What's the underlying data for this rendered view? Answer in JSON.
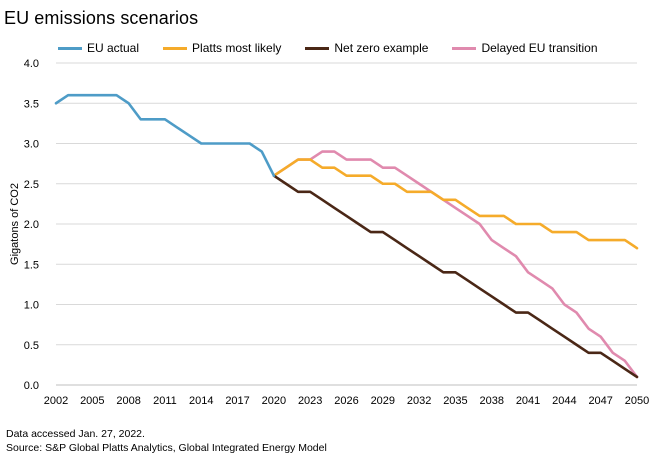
{
  "title": "EU emissions scenarios",
  "notes": {
    "accessed": "Data accessed Jan. 27, 2022.",
    "source": "Source: S&P Global Platts Analytics, Global Integrated Energy Model"
  },
  "chart_data": {
    "type": "line",
    "title": "EU emissions scenarios",
    "xlabel": "",
    "ylabel": "Gigatons of CO2",
    "xlim": [
      2002,
      2050
    ],
    "ylim": [
      0,
      4.0
    ],
    "x_ticks": [
      2002,
      2005,
      2008,
      2011,
      2014,
      2017,
      2020,
      2023,
      2026,
      2029,
      2032,
      2035,
      2038,
      2041,
      2044,
      2047,
      2050
    ],
    "y_ticks": [
      "0.0",
      "0.5",
      "1.0",
      "1.5",
      "2.0",
      "2.5",
      "3.0",
      "3.5",
      "4.0"
    ],
    "grid": "horizontal",
    "legend_position": "top",
    "series": [
      {
        "name": "EU actual",
        "color": "#4e9cc7",
        "x": [
          2002,
          2003,
          2004,
          2005,
          2006,
          2007,
          2008,
          2009,
          2010,
          2011,
          2012,
          2013,
          2014,
          2015,
          2016,
          2017,
          2018,
          2019,
          2020
        ],
        "y": [
          3.5,
          3.6,
          3.6,
          3.6,
          3.6,
          3.6,
          3.5,
          3.3,
          3.3,
          3.3,
          3.2,
          3.1,
          3.0,
          3.0,
          3.0,
          3.0,
          3.0,
          2.9,
          2.6
        ]
      },
      {
        "name": "Platts most likely",
        "color": "#f5ab2a",
        "x": [
          2020,
          2021,
          2022,
          2023,
          2024,
          2025,
          2026,
          2027,
          2028,
          2029,
          2030,
          2031,
          2032,
          2033,
          2034,
          2035,
          2036,
          2037,
          2038,
          2039,
          2040,
          2041,
          2042,
          2043,
          2044,
          2045,
          2046,
          2047,
          2048,
          2049,
          2050
        ],
        "y": [
          2.6,
          2.7,
          2.8,
          2.8,
          2.7,
          2.7,
          2.6,
          2.6,
          2.6,
          2.5,
          2.5,
          2.4,
          2.4,
          2.4,
          2.3,
          2.3,
          2.2,
          2.1,
          2.1,
          2.1,
          2.0,
          2.0,
          2.0,
          1.9,
          1.9,
          1.9,
          1.8,
          1.8,
          1.8,
          1.8,
          1.7
        ]
      },
      {
        "name": "Net zero example",
        "color": "#4a2716",
        "x": [
          2020,
          2021,
          2022,
          2023,
          2024,
          2025,
          2026,
          2027,
          2028,
          2029,
          2030,
          2031,
          2032,
          2033,
          2034,
          2035,
          2036,
          2037,
          2038,
          2039,
          2040,
          2041,
          2042,
          2043,
          2044,
          2045,
          2046,
          2047,
          2048,
          2049,
          2050
        ],
        "y": [
          2.6,
          2.5,
          2.4,
          2.4,
          2.3,
          2.2,
          2.1,
          2.0,
          1.9,
          1.9,
          1.8,
          1.7,
          1.6,
          1.5,
          1.4,
          1.4,
          1.3,
          1.2,
          1.1,
          1.0,
          0.9,
          0.9,
          0.8,
          0.7,
          0.6,
          0.5,
          0.4,
          0.4,
          0.3,
          0.2,
          0.1
        ]
      },
      {
        "name": "Delayed EU transition",
        "color": "#e08aae",
        "x": [
          2020,
          2021,
          2022,
          2023,
          2024,
          2025,
          2026,
          2027,
          2028,
          2029,
          2030,
          2031,
          2032,
          2033,
          2034,
          2035,
          2036,
          2037,
          2038,
          2039,
          2040,
          2041,
          2042,
          2043,
          2044,
          2045,
          2046,
          2047,
          2048,
          2049,
          2050
        ],
        "y": [
          2.6,
          2.7,
          2.8,
          2.8,
          2.9,
          2.9,
          2.8,
          2.8,
          2.8,
          2.7,
          2.7,
          2.6,
          2.5,
          2.4,
          2.3,
          2.2,
          2.1,
          2.0,
          1.8,
          1.7,
          1.6,
          1.4,
          1.3,
          1.2,
          1.0,
          0.9,
          0.7,
          0.6,
          0.4,
          0.3,
          0.1
        ]
      }
    ]
  }
}
